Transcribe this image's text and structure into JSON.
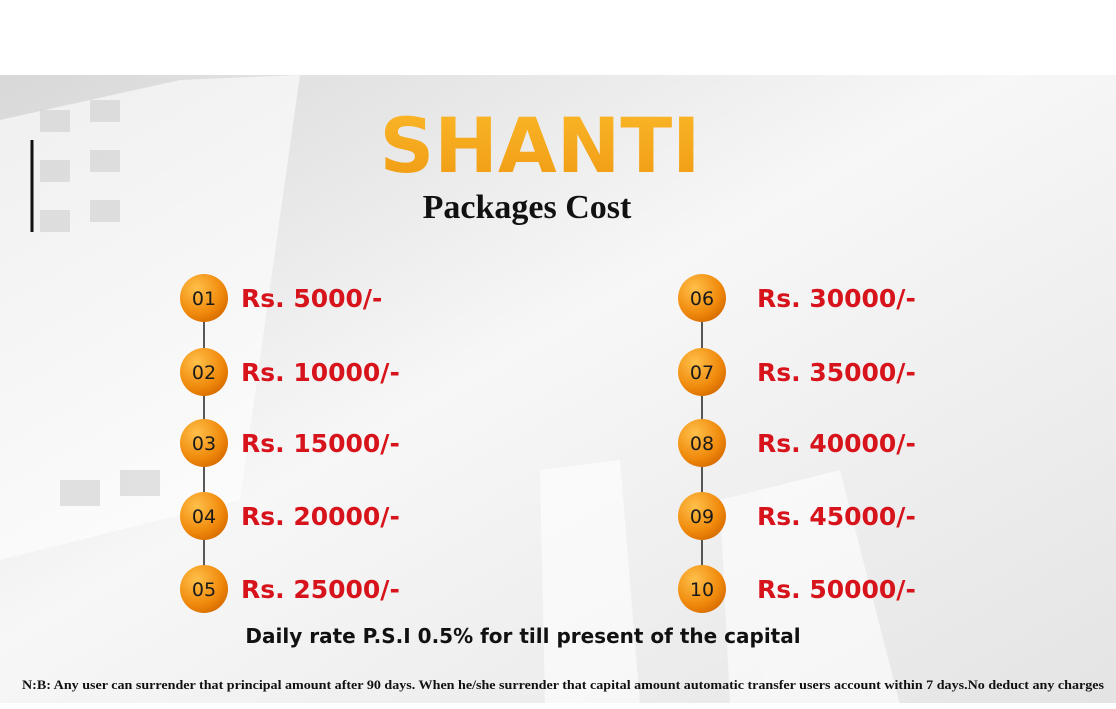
{
  "header": {
    "title": "SHANTI",
    "subtitle": "Packages Cost"
  },
  "packages": [
    {
      "number": "01",
      "price": "Rs. 5000/-"
    },
    {
      "number": "02",
      "price": "Rs. 10000/-"
    },
    {
      "number": "03",
      "price": "Rs. 15000/-"
    },
    {
      "number": "04",
      "price": "Rs. 20000/-"
    },
    {
      "number": "05",
      "price": "Rs. 25000/-"
    },
    {
      "number": "06",
      "price": "Rs. 30000/-"
    },
    {
      "number": "07",
      "price": "Rs. 35000/-"
    },
    {
      "number": "08",
      "price": "Rs. 40000/-"
    },
    {
      "number": "09",
      "price": "Rs. 45000/-"
    },
    {
      "number": "10",
      "price": "Rs. 50000/-"
    }
  ],
  "rate_note": "Daily rate P.S.I 0.5% for till present of the capital",
  "footer_note": "N:B: Any user can surrender that principal amount after 90 days. When he/she surrender that capital amount automatic transfer users account within 7 days.No deduct any charges"
}
